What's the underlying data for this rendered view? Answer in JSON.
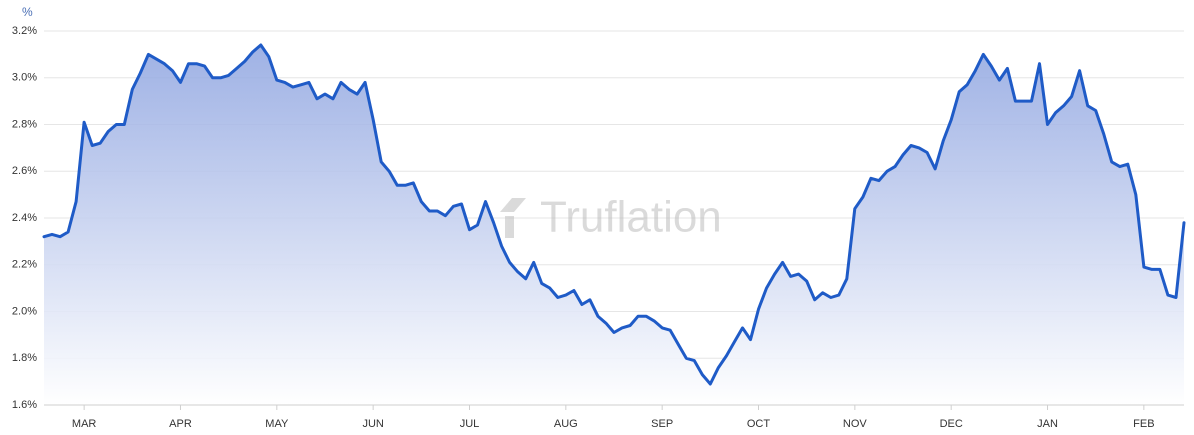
{
  "chart_data": {
    "type": "area",
    "y_axis_label": "%",
    "watermark": "Truflation",
    "color": "#1f5bc7",
    "fill_color": "#8ea4e0",
    "grid": true,
    "ylim": [
      1.6,
      3.2
    ],
    "yticks": [
      {
        "value": 1.6,
        "label": "1.6%"
      },
      {
        "value": 1.8,
        "label": "1.8%"
      },
      {
        "value": 2.0,
        "label": "2.0%"
      },
      {
        "value": 2.2,
        "label": "2.2%"
      },
      {
        "value": 2.4,
        "label": "2.4%"
      },
      {
        "value": 2.6,
        "label": "2.6%"
      },
      {
        "value": 2.8,
        "label": "2.8%"
      },
      {
        "value": 3.0,
        "label": "3.0%"
      },
      {
        "value": 3.2,
        "label": "3.2%"
      }
    ],
    "categories": [
      null,
      null,
      null,
      null,
      null,
      "MAR",
      null,
      null,
      null,
      null,
      null,
      null,
      null,
      null,
      null,
      null,
      null,
      "APR",
      null,
      null,
      null,
      null,
      null,
      null,
      null,
      null,
      null,
      null,
      null,
      "MAY",
      null,
      null,
      null,
      null,
      null,
      null,
      null,
      null,
      null,
      null,
      null,
      "JUN",
      null,
      null,
      null,
      null,
      null,
      null,
      null,
      null,
      null,
      null,
      null,
      "JUL",
      null,
      null,
      null,
      null,
      null,
      null,
      null,
      null,
      null,
      null,
      null,
      "AUG",
      null,
      null,
      null,
      null,
      null,
      null,
      null,
      null,
      null,
      null,
      null,
      "SEP",
      null,
      null,
      null,
      null,
      null,
      null,
      null,
      null,
      null,
      null,
      null,
      "OCT",
      null,
      null,
      null,
      null,
      null,
      null,
      null,
      null,
      null,
      null,
      null,
      "NOV",
      null,
      null,
      null,
      null,
      null,
      null,
      null,
      null,
      null,
      null,
      null,
      "DEC",
      null,
      null,
      null,
      null,
      null,
      null,
      null,
      null,
      null,
      null,
      null,
      "JAN",
      null,
      null,
      null,
      null,
      null,
      null,
      null,
      null,
      null,
      null,
      null,
      "FEB",
      null,
      null,
      null,
      null,
      null
    ],
    "values": [
      2.32,
      2.33,
      2.32,
      2.34,
      2.47,
      2.81,
      2.71,
      2.72,
      2.77,
      2.8,
      2.8,
      2.95,
      3.02,
      3.1,
      3.08,
      3.06,
      3.03,
      2.98,
      3.06,
      3.06,
      3.05,
      3.0,
      3.0,
      3.01,
      3.04,
      3.07,
      3.11,
      3.14,
      3.09,
      2.99,
      2.98,
      2.96,
      2.97,
      2.98,
      2.91,
      2.93,
      2.91,
      2.98,
      2.95,
      2.93,
      2.98,
      2.82,
      2.64,
      2.6,
      2.54,
      2.54,
      2.55,
      2.47,
      2.43,
      2.43,
      2.41,
      2.45,
      2.46,
      2.35,
      2.37,
      2.47,
      2.38,
      2.28,
      2.21,
      2.17,
      2.14,
      2.21,
      2.12,
      2.1,
      2.06,
      2.07,
      2.09,
      2.03,
      2.05,
      1.98,
      1.95,
      1.91,
      1.93,
      1.94,
      1.98,
      1.98,
      1.96,
      1.93,
      1.92,
      1.86,
      1.8,
      1.79,
      1.73,
      1.69,
      1.76,
      1.81,
      1.87,
      1.93,
      1.88,
      2.01,
      2.1,
      2.16,
      2.21,
      2.15,
      2.16,
      2.13,
      2.05,
      2.08,
      2.06,
      2.07,
      2.14,
      2.44,
      2.49,
      2.57,
      2.56,
      2.6,
      2.62,
      2.67,
      2.71,
      2.7,
      2.68,
      2.61,
      2.73,
      2.82,
      2.94,
      2.97,
      3.03,
      3.1,
      3.05,
      2.99,
      3.04,
      2.9,
      2.9,
      2.9,
      3.06,
      2.8,
      2.85,
      2.88,
      2.92,
      3.03,
      2.88,
      2.86,
      2.76,
      2.64,
      2.62,
      2.63,
      2.5,
      2.19,
      2.18,
      2.18,
      2.07,
      2.06,
      2.38
    ]
  }
}
